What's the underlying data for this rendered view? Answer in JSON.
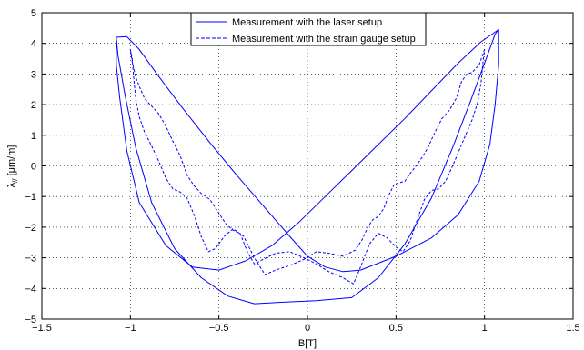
{
  "chart_data": {
    "type": "line",
    "xlabel": "B[T]",
    "ylabel": "λ// [μm/m]",
    "ylabel_main": "λ",
    "ylabel_sub": "//",
    "ylabel_unit": " [μm/m]",
    "xlim": [
      -1.5,
      1.5
    ],
    "ylim": [
      -5,
      5
    ],
    "xticks": [
      -1.5,
      -1,
      -0.5,
      0,
      0.5,
      1,
      1.5
    ],
    "yticks": [
      -5,
      -4,
      -3,
      -2,
      -1,
      0,
      1,
      2,
      3,
      4,
      5
    ],
    "xtick_labels": [
      "−1.5",
      "−1",
      "−0.5",
      "0",
      "0.5",
      "1",
      "1.5"
    ],
    "ytick_labels": [
      "−5",
      "−4",
      "−3",
      "−2",
      "−1",
      "0",
      "1",
      "2",
      "3",
      "4",
      "5"
    ],
    "grid": true,
    "legend_position": "top-center",
    "series": [
      {
        "name": "Measurement with the laser setup",
        "style": "solid",
        "color": "#0000ff",
        "points": [
          [
            1.08,
            4.45
          ],
          [
            0.98,
            4.05
          ],
          [
            0.85,
            3.35
          ],
          [
            0.7,
            2.45
          ],
          [
            0.55,
            1.55
          ],
          [
            0.4,
            0.7
          ],
          [
            0.25,
            -0.15
          ],
          [
            0.1,
            -1.0
          ],
          [
            -0.05,
            -1.85
          ],
          [
            -0.2,
            -2.6
          ],
          [
            -0.35,
            -3.1
          ],
          [
            -0.5,
            -3.4
          ],
          [
            -0.65,
            -3.3
          ],
          [
            -0.8,
            -2.6
          ],
          [
            -0.95,
            -1.2
          ],
          [
            -1.02,
            0.5
          ],
          [
            -1.06,
            2.2
          ],
          [
            -1.08,
            3.3
          ],
          [
            -1.08,
            4.2
          ],
          [
            -1.02,
            4.22
          ],
          [
            -0.95,
            3.8
          ],
          [
            -0.85,
            3.0
          ],
          [
            -0.7,
            1.85
          ],
          [
            -0.55,
            0.75
          ],
          [
            -0.4,
            -0.3
          ],
          [
            -0.25,
            -1.3
          ],
          [
            -0.1,
            -2.3
          ],
          [
            0.0,
            -2.95
          ],
          [
            0.1,
            -3.3
          ],
          [
            0.2,
            -3.45
          ],
          [
            0.3,
            -3.4
          ],
          [
            0.5,
            -2.95
          ],
          [
            0.7,
            -2.35
          ],
          [
            0.85,
            -1.6
          ],
          [
            0.97,
            -0.5
          ],
          [
            1.03,
            0.7
          ],
          [
            1.06,
            2.0
          ],
          [
            1.08,
            3.3
          ],
          [
            1.08,
            4.45
          ],
          [
            1.06,
            4.3
          ],
          [
            1.0,
            3.35
          ],
          [
            0.92,
            2.1
          ],
          [
            0.82,
            0.6
          ],
          [
            0.7,
            -1.05
          ],
          [
            0.55,
            -2.55
          ],
          [
            0.4,
            -3.65
          ],
          [
            0.25,
            -4.3
          ],
          [
            0.05,
            -4.4
          ],
          [
            -0.15,
            -4.45
          ],
          [
            -0.3,
            -4.5
          ],
          [
            -0.45,
            -4.25
          ],
          [
            -0.6,
            -3.65
          ],
          [
            -0.75,
            -2.7
          ],
          [
            -0.88,
            -1.2
          ],
          [
            -0.97,
            0.6
          ],
          [
            -1.03,
            2.3
          ],
          [
            -1.07,
            3.6
          ],
          [
            -1.08,
            4.2
          ]
        ]
      },
      {
        "name": "Measurement with the strain gauge setup",
        "style": "dashed",
        "color": "#0000ff",
        "points": [
          [
            1.0,
            3.8
          ],
          [
            0.97,
            3.3
          ],
          [
            0.93,
            3.05
          ],
          [
            0.9,
            3.0
          ],
          [
            0.87,
            2.75
          ],
          [
            0.84,
            2.2
          ],
          [
            0.8,
            1.8
          ],
          [
            0.76,
            1.55
          ],
          [
            0.72,
            1.1
          ],
          [
            0.68,
            0.6
          ],
          [
            0.65,
            0.3
          ],
          [
            0.62,
            0.05
          ],
          [
            0.58,
            -0.25
          ],
          [
            0.55,
            -0.5
          ],
          [
            0.52,
            -0.55
          ],
          [
            0.49,
            -0.6
          ],
          [
            0.46,
            -0.95
          ],
          [
            0.43,
            -1.4
          ],
          [
            0.4,
            -1.65
          ],
          [
            0.37,
            -1.75
          ],
          [
            0.34,
            -2.0
          ],
          [
            0.31,
            -2.4
          ],
          [
            0.27,
            -2.75
          ],
          [
            0.2,
            -2.95
          ],
          [
            0.12,
            -2.85
          ],
          [
            0.05,
            -2.8
          ],
          [
            -0.02,
            -3.05
          ],
          [
            -0.1,
            -3.25
          ],
          [
            -0.18,
            -3.4
          ],
          [
            -0.24,
            -3.55
          ],
          [
            -0.3,
            -3.0
          ],
          [
            -0.36,
            -2.3
          ],
          [
            -0.42,
            -2.05
          ],
          [
            -0.47,
            -2.3
          ],
          [
            -0.52,
            -2.7
          ],
          [
            -0.56,
            -2.8
          ],
          [
            -0.6,
            -2.3
          ],
          [
            -0.64,
            -1.6
          ],
          [
            -0.68,
            -1.05
          ],
          [
            -0.72,
            -0.85
          ],
          [
            -0.76,
            -0.75
          ],
          [
            -0.8,
            -0.4
          ],
          [
            -0.84,
            0.15
          ],
          [
            -0.88,
            0.65
          ],
          [
            -0.92,
            1.1
          ],
          [
            -0.95,
            1.6
          ],
          [
            -0.97,
            2.2
          ],
          [
            -0.98,
            2.8
          ],
          [
            -0.99,
            3.5
          ],
          [
            -1.0,
            3.8
          ],
          [
            -0.99,
            3.4
          ],
          [
            -0.97,
            2.9
          ],
          [
            -0.95,
            2.6
          ],
          [
            -0.92,
            2.2
          ],
          [
            -0.88,
            1.95
          ],
          [
            -0.84,
            1.7
          ],
          [
            -0.8,
            1.3
          ],
          [
            -0.76,
            0.8
          ],
          [
            -0.72,
            0.35
          ],
          [
            -0.68,
            -0.3
          ],
          [
            -0.64,
            -0.65
          ],
          [
            -0.6,
            -0.9
          ],
          [
            -0.55,
            -1.1
          ],
          [
            -0.5,
            -1.55
          ],
          [
            -0.46,
            -1.9
          ],
          [
            -0.42,
            -2.1
          ],
          [
            -0.38,
            -2.2
          ],
          [
            -0.34,
            -2.8
          ],
          [
            -0.3,
            -3.2
          ],
          [
            -0.25,
            -3.05
          ],
          [
            -0.18,
            -2.85
          ],
          [
            -0.1,
            -2.8
          ],
          [
            -0.02,
            -3.0
          ],
          [
            0.05,
            -3.2
          ],
          [
            0.12,
            -3.45
          ],
          [
            0.2,
            -3.65
          ],
          [
            0.26,
            -3.85
          ],
          [
            0.3,
            -3.3
          ],
          [
            0.35,
            -2.55
          ],
          [
            0.4,
            -2.2
          ],
          [
            0.45,
            -2.35
          ],
          [
            0.5,
            -2.65
          ],
          [
            0.54,
            -2.8
          ],
          [
            0.58,
            -2.45
          ],
          [
            0.62,
            -1.75
          ],
          [
            0.66,
            -1.1
          ],
          [
            0.7,
            -0.8
          ],
          [
            0.74,
            -0.75
          ],
          [
            0.78,
            -0.5
          ],
          [
            0.82,
            0.0
          ],
          [
            0.86,
            0.55
          ],
          [
            0.9,
            1.1
          ],
          [
            0.93,
            1.5
          ],
          [
            0.96,
            2.05
          ],
          [
            0.98,
            2.7
          ],
          [
            0.99,
            3.3
          ],
          [
            1.0,
            3.8
          ]
        ]
      }
    ]
  }
}
